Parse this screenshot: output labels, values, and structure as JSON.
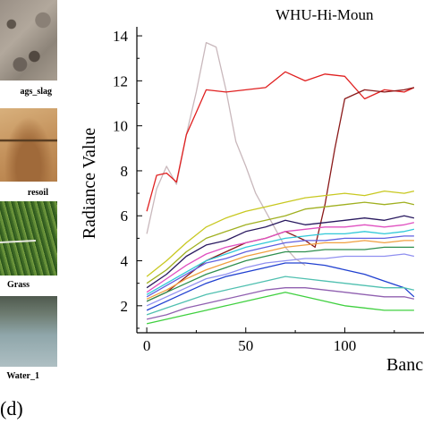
{
  "panel_label": "(d)",
  "photos": [
    {
      "label": "ags_slag",
      "key": "slag"
    },
    {
      "label": "resoil",
      "key": "soil"
    },
    {
      "label": "Grass",
      "key": "grass"
    },
    {
      "label": "Water_1",
      "key": "water"
    }
  ],
  "chart_data": {
    "type": "line",
    "title": "WHU-Hi-Moun",
    "xlabel": "Banc",
    "ylabel": "Radiance Value",
    "xlim": [
      -5,
      140
    ],
    "ylim": [
      0.8,
      14.4
    ],
    "xticks": [
      0,
      50,
      100
    ],
    "yticks": [
      2,
      4,
      6,
      8,
      10,
      12,
      14
    ],
    "grid": false,
    "series": [
      {
        "color": "#c9b8bc",
        "x": [
          0,
          5,
          10,
          15,
          20,
          25,
          30,
          35,
          40,
          45,
          50,
          55,
          60,
          65,
          70,
          75,
          80
        ],
        "values": [
          5.2,
          7.2,
          8.2,
          7.4,
          9.6,
          11.5,
          13.7,
          13.5,
          11.6,
          9.3,
          8.2,
          7.0,
          6.2,
          5.4,
          4.6,
          4.1,
          3.8
        ]
      },
      {
        "color": "#e02020",
        "x": [
          0,
          5,
          10,
          15,
          20,
          25,
          30,
          40,
          50,
          60,
          70,
          80,
          90,
          100,
          110,
          120,
          130,
          135
        ],
        "values": [
          6.2,
          7.8,
          7.9,
          7.5,
          9.6,
          10.6,
          11.6,
          11.5,
          11.6,
          11.7,
          12.4,
          12.0,
          12.3,
          12.2,
          11.2,
          11.6,
          11.5,
          11.7
        ]
      },
      {
        "color": "#8b1a1a",
        "x": [
          0,
          10,
          20,
          30,
          40,
          50,
          60,
          70,
          80,
          85,
          90,
          95,
          100,
          110,
          120,
          130,
          135
        ],
        "values": [
          2.2,
          2.6,
          3.3,
          4.0,
          4.4,
          4.8,
          5.0,
          5.3,
          4.9,
          4.6,
          6.5,
          9.0,
          11.2,
          11.6,
          11.5,
          11.6,
          11.7
        ]
      },
      {
        "color": "#c8c820",
        "x": [
          0,
          10,
          20,
          30,
          40,
          50,
          60,
          70,
          80,
          90,
          100,
          110,
          120,
          130,
          135
        ],
        "values": [
          3.3,
          4.0,
          4.8,
          5.5,
          5.9,
          6.2,
          6.4,
          6.6,
          6.8,
          6.9,
          7.0,
          6.9,
          7.1,
          7.0,
          7.1
        ]
      },
      {
        "color": "#a0b020",
        "x": [
          0,
          10,
          20,
          30,
          40,
          50,
          60,
          70,
          80,
          90,
          100,
          110,
          120,
          130,
          135
        ],
        "values": [
          3.0,
          3.6,
          4.4,
          5.0,
          5.3,
          5.6,
          5.8,
          6.0,
          6.3,
          6.4,
          6.5,
          6.6,
          6.5,
          6.6,
          6.5
        ]
      },
      {
        "color": "#2a1a60",
        "x": [
          0,
          10,
          20,
          30,
          40,
          50,
          60,
          70,
          80,
          90,
          100,
          110,
          120,
          130,
          135
        ],
        "values": [
          2.8,
          3.4,
          4.2,
          4.7,
          4.9,
          5.3,
          5.5,
          5.8,
          5.6,
          5.7,
          5.8,
          5.9,
          5.8,
          6.0,
          5.9
        ]
      },
      {
        "color": "#e050c0",
        "x": [
          0,
          10,
          20,
          30,
          40,
          50,
          60,
          70,
          80,
          90,
          100,
          110,
          120,
          130,
          135
        ],
        "values": [
          2.6,
          3.2,
          3.8,
          4.3,
          4.6,
          4.8,
          5.0,
          5.3,
          5.4,
          5.5,
          5.5,
          5.6,
          5.5,
          5.6,
          5.7
        ]
      },
      {
        "color": "#30c8d8",
        "x": [
          0,
          10,
          20,
          30,
          40,
          50,
          60,
          70,
          80,
          90,
          100,
          110,
          120,
          130,
          135
        ],
        "values": [
          2.5,
          3.0,
          3.5,
          4.0,
          4.3,
          4.6,
          4.8,
          5.0,
          5.1,
          5.2,
          5.2,
          5.3,
          5.2,
          5.3,
          5.4
        ]
      },
      {
        "color": "#6060e0",
        "x": [
          0,
          10,
          20,
          30,
          40,
          50,
          60,
          70,
          80,
          90,
          100,
          110,
          120,
          130,
          135
        ],
        "values": [
          2.4,
          2.9,
          3.4,
          3.9,
          4.1,
          4.4,
          4.6,
          4.8,
          4.9,
          4.9,
          5.0,
          5.0,
          5.0,
          5.1,
          5.1
        ]
      },
      {
        "color": "#f0a040",
        "x": [
          0,
          10,
          20,
          30,
          40,
          50,
          60,
          70,
          80,
          90,
          100,
          110,
          120,
          130,
          135
        ],
        "values": [
          2.3,
          2.7,
          3.2,
          3.6,
          3.9,
          4.2,
          4.4,
          4.6,
          4.7,
          4.8,
          4.8,
          4.9,
          4.8,
          4.9,
          4.9
        ]
      },
      {
        "color": "#2f8f4f",
        "x": [
          0,
          10,
          20,
          30,
          40,
          50,
          60,
          70,
          80,
          90,
          100,
          110,
          120,
          130,
          135
        ],
        "values": [
          2.2,
          2.6,
          3.0,
          3.4,
          3.7,
          4.0,
          4.2,
          4.4,
          4.4,
          4.5,
          4.5,
          4.5,
          4.6,
          4.6,
          4.6
        ]
      },
      {
        "color": "#9090f0",
        "x": [
          0,
          10,
          20,
          30,
          40,
          50,
          60,
          70,
          80,
          90,
          100,
          110,
          120,
          130,
          135
        ],
        "values": [
          2.0,
          2.4,
          2.8,
          3.2,
          3.4,
          3.7,
          3.9,
          4.0,
          4.1,
          4.1,
          4.2,
          4.2,
          4.2,
          4.3,
          4.2
        ]
      },
      {
        "color": "#2040d0",
        "x": [
          0,
          10,
          20,
          30,
          40,
          50,
          60,
          70,
          80,
          90,
          100,
          110,
          120,
          130,
          135
        ],
        "values": [
          1.8,
          2.2,
          2.6,
          3.0,
          3.3,
          3.5,
          3.7,
          3.9,
          3.9,
          3.8,
          3.6,
          3.4,
          3.1,
          2.8,
          2.4
        ]
      },
      {
        "color": "#50c0b0",
        "x": [
          0,
          10,
          20,
          30,
          40,
          50,
          60,
          70,
          80,
          90,
          100,
          110,
          120,
          130,
          135
        ],
        "values": [
          1.6,
          1.9,
          2.2,
          2.5,
          2.7,
          2.9,
          3.1,
          3.3,
          3.2,
          3.1,
          3.0,
          2.9,
          2.8,
          2.8,
          2.7
        ]
      },
      {
        "color": "#9060b0",
        "x": [
          0,
          10,
          20,
          30,
          40,
          50,
          60,
          70,
          80,
          90,
          100,
          110,
          120,
          130,
          135
        ],
        "values": [
          1.4,
          1.6,
          1.9,
          2.1,
          2.3,
          2.5,
          2.7,
          2.8,
          2.8,
          2.7,
          2.6,
          2.5,
          2.4,
          2.4,
          2.3
        ]
      },
      {
        "color": "#40d040",
        "x": [
          0,
          10,
          20,
          30,
          40,
          50,
          60,
          70,
          80,
          90,
          100,
          110,
          120,
          130,
          135
        ],
        "values": [
          1.2,
          1.4,
          1.6,
          1.8,
          2.0,
          2.2,
          2.4,
          2.6,
          2.4,
          2.2,
          2.0,
          1.9,
          1.8,
          1.8,
          1.8
        ]
      }
    ]
  }
}
